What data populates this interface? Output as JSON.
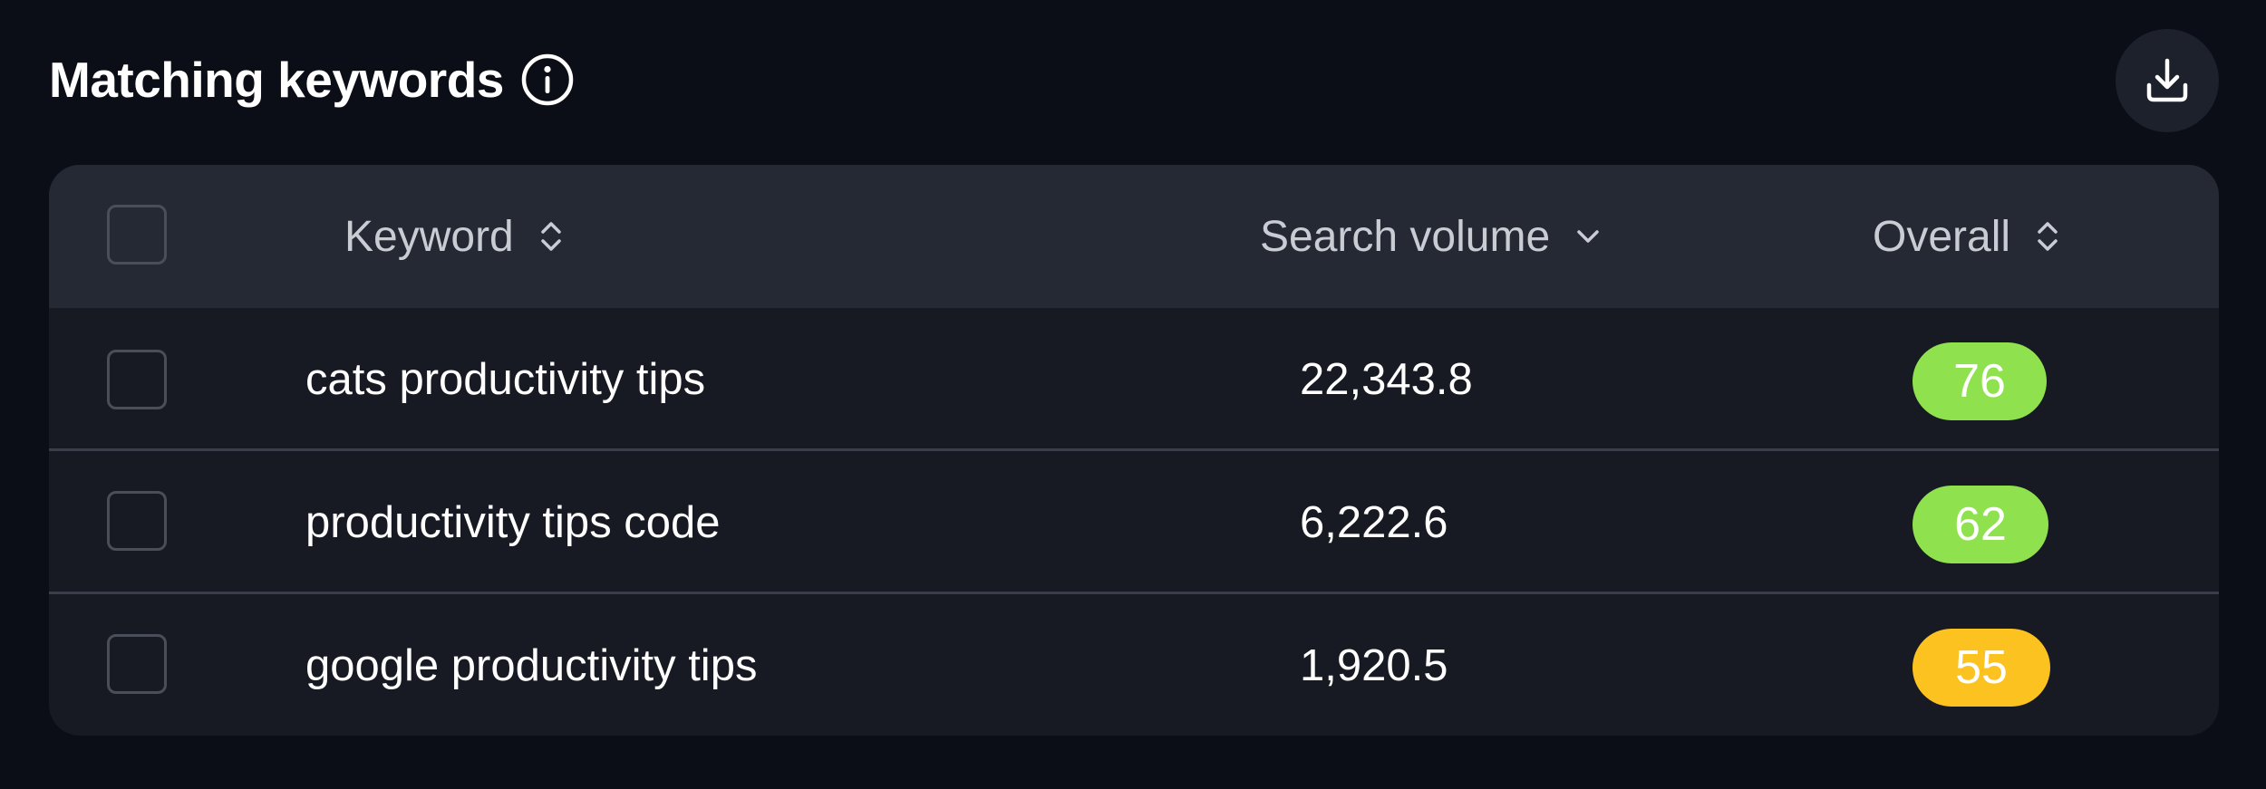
{
  "header": {
    "title": "Matching keywords"
  },
  "icons": {
    "info": "info-circle-icon",
    "download": "download-tray-icon",
    "sort_both": "sort-up-down-icon",
    "sort_desc": "chevron-down-icon"
  },
  "table": {
    "columns": {
      "keyword": "Keyword",
      "search_volume": "Search volume",
      "overall": "Overall"
    },
    "rows": [
      {
        "keyword": "cats productivity tips",
        "search_volume": "22,343.8",
        "overall": "76",
        "overall_color": "#8fe14e"
      },
      {
        "keyword": "productivity tips code",
        "search_volume": "6,222.6",
        "overall": "62",
        "overall_color": "#8fe14e"
      },
      {
        "keyword": "google productivity tips",
        "search_volume": "1,920.5",
        "overall": "55",
        "overall_color": "#fbc220"
      }
    ]
  },
  "colors": {
    "background": "#0b0e16",
    "table_body": "#171a23",
    "table_header": "#252934",
    "score_good": "#8fe14e",
    "score_medium": "#fbc220"
  }
}
